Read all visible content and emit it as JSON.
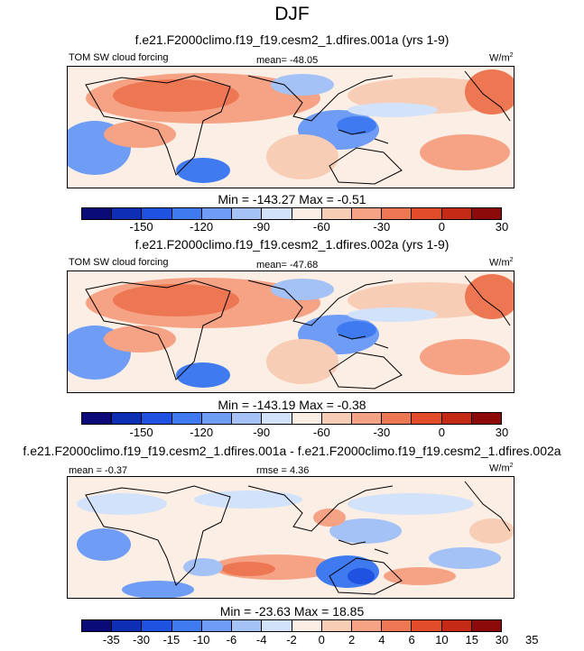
{
  "title": "DJF",
  "panels": [
    {
      "case": "f.e21.F2000climo.f19_f19.cesm2_1.dfires.001a (yrs 1-9)",
      "left_label": "TOM SW cloud forcing",
      "center_label": "mean= -48.05",
      "units": "W/m",
      "units_sup": "2",
      "minmax": "Min = -143.27 Max =  -0.51"
    },
    {
      "case": "f.e21.F2000climo.f19_f19.cesm2_1.dfires.002a (yrs 1-9)",
      "left_label": "TOM SW cloud forcing",
      "center_label": "mean= -47.68",
      "units": "W/m",
      "units_sup": "2",
      "minmax": "Min = -143.19 Max =  -0.38"
    },
    {
      "case": "f.e21.F2000climo.f19_f19.cesm2_1.dfires.001a - f.e21.F2000climo.f19_f19.cesm2_1.dfires.002a",
      "left_label": "mean =  -0.37",
      "center_label": "rmse =  4.36",
      "units": "W/m",
      "units_sup": "2",
      "minmax": "Min = -23.63 Max =  18.85"
    }
  ],
  "colorbar_abs": {
    "colors": [
      "#0a0a78",
      "#0d2fb4",
      "#1f52e0",
      "#3f7af0",
      "#6f9cf4",
      "#a4c2f6",
      "#d2e2fa",
      "#fbeee4",
      "#f8cdb6",
      "#f5a285",
      "#ee7753",
      "#e34c2a",
      "#c52a17",
      "#8c0a0a"
    ],
    "tick_labels": [
      "-150",
      "-120",
      "-90",
      "-60",
      "-30",
      "0",
      "30"
    ],
    "tick_slots": [
      2,
      4,
      6,
      8,
      10,
      12,
      14
    ]
  },
  "colorbar_diff": {
    "colors": [
      "#0a0a78",
      "#0d2fb4",
      "#1f52e0",
      "#3f7af0",
      "#6f9cf4",
      "#a4c2f6",
      "#d2e2fa",
      "#fbeee4",
      "#f8cdb6",
      "#f5a285",
      "#ee7753",
      "#e34c2a",
      "#c52a17",
      "#8c0a0a"
    ],
    "tick_labels": [
      "-35",
      "-30",
      "-15",
      "-10",
      "-6",
      "-4",
      "-2",
      "0",
      "2",
      "4",
      "6",
      "10",
      "15",
      "30",
      "35"
    ],
    "tick_slots": [
      1,
      2,
      3,
      4,
      5,
      6,
      7,
      8,
      9,
      10,
      11,
      12,
      13,
      14,
      15
    ]
  }
}
